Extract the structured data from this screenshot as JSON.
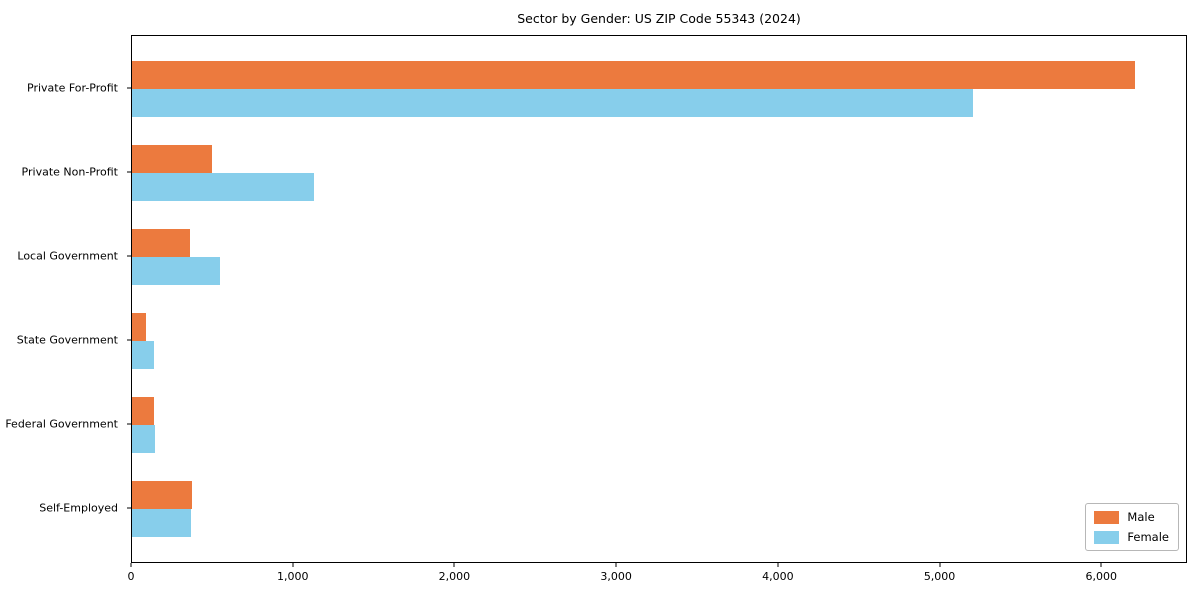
{
  "chart_data": {
    "type": "bar",
    "orientation": "horizontal",
    "title": "Sector by Gender: US ZIP Code 55343 (2024)",
    "categories": [
      "Private For-Profit",
      "Private Non-Profit",
      "Local Government",
      "State Government",
      "Federal Government",
      "Self-Employed"
    ],
    "series": [
      {
        "name": "Male",
        "color": "#ec7a3e",
        "values": [
          6205,
          495,
          361,
          87,
          134,
          371
        ]
      },
      {
        "name": "Female",
        "color": "#87ceeb",
        "values": [
          5200,
          1123,
          542,
          134,
          140,
          365
        ]
      }
    ],
    "x_ticks": [
      0,
      1000,
      2000,
      3000,
      4000,
      5000,
      6000
    ],
    "x_tick_labels": [
      "0",
      "1,000",
      "2,000",
      "3,000",
      "4,000",
      "5,000",
      "6,000"
    ],
    "xlim": [
      0,
      6530
    ],
    "xlabel": "",
    "ylabel": "",
    "grid": false,
    "legend_position": "lower right",
    "plot_bg": "#ffffff",
    "spine_color": "#000000"
  }
}
